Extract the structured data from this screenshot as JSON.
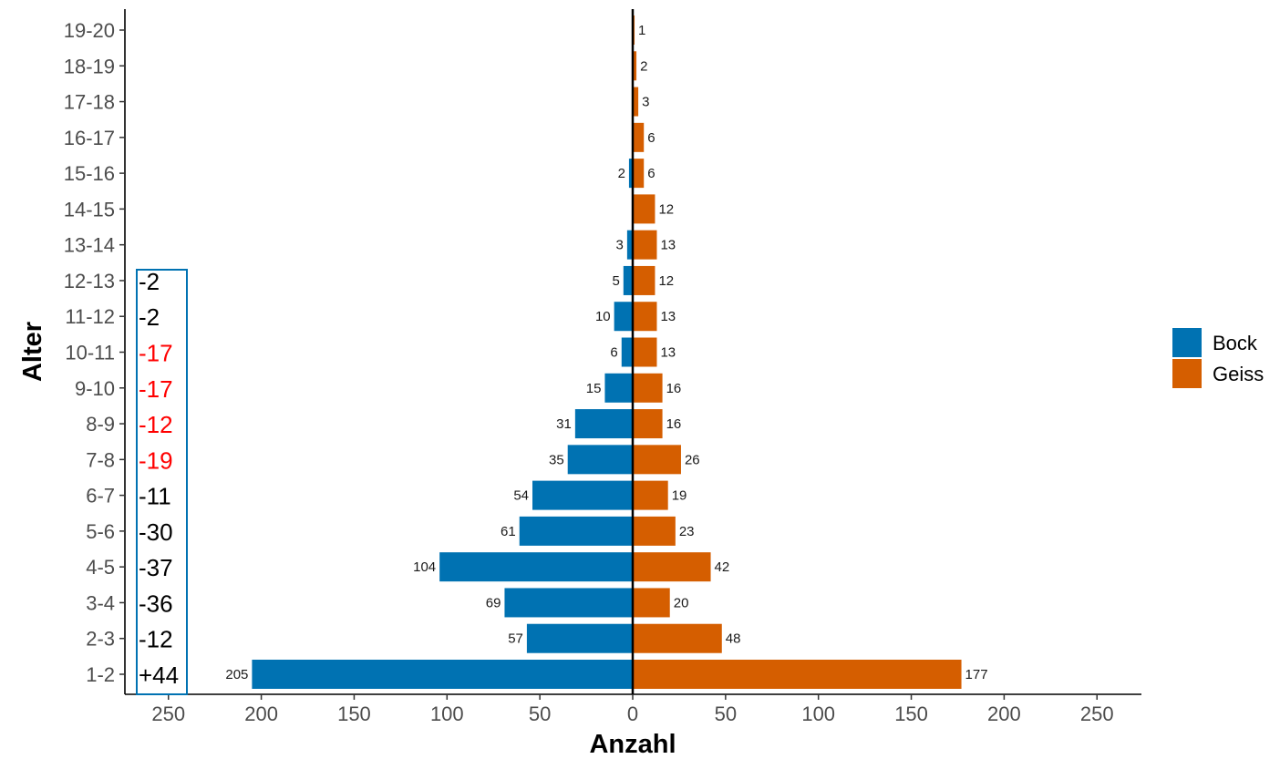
{
  "chart_data": {
    "type": "bar",
    "orientation": "horizontal",
    "layout": "population-pyramid",
    "categories": [
      "1-2",
      "2-3",
      "3-4",
      "4-5",
      "5-6",
      "6-7",
      "7-8",
      "8-9",
      "9-10",
      "10-11",
      "11-12",
      "12-13",
      "13-14",
      "14-15",
      "15-16",
      "16-17",
      "17-18",
      "18-19",
      "19-20"
    ],
    "series": [
      {
        "name": "Bock",
        "color": "#0072B2",
        "direction": "left",
        "values": [
          205,
          57,
          69,
          104,
          61,
          54,
          35,
          31,
          15,
          6,
          10,
          5,
          3,
          0,
          2,
          0,
          0,
          0,
          0
        ],
        "labels": [
          "205",
          "57",
          "69",
          "104",
          "61",
          "54",
          "35",
          "31",
          "15",
          "6",
          "10",
          "5",
          "3",
          "",
          "2",
          "",
          "",
          "",
          ""
        ]
      },
      {
        "name": "Geiss",
        "color": "#D55E00",
        "direction": "right",
        "values": [
          177,
          48,
          20,
          42,
          23,
          19,
          26,
          16,
          16,
          13,
          13,
          12,
          13,
          12,
          6,
          6,
          3,
          2,
          1
        ],
        "labels": [
          "177",
          "48",
          "20",
          "42",
          "23",
          "19",
          "26",
          "16",
          "16",
          "13",
          "13",
          "12",
          "13",
          "12",
          "6",
          "6",
          "3",
          "2",
          "1"
        ]
      }
    ],
    "xlabel": "Anzahl",
    "ylabel": "Alter",
    "xlim": [
      -275,
      275
    ],
    "xticks": [
      -250,
      -200,
      -150,
      -100,
      -50,
      0,
      50,
      100,
      150,
      200,
      250
    ],
    "xtick_labels": [
      "250",
      "200",
      "150",
      "100",
      "50",
      "0",
      "50",
      "100",
      "150",
      "200",
      "250"
    ],
    "grid": false,
    "legend_position": "right",
    "annotation_box": {
      "border_color": "#0072B2",
      "entries": [
        {
          "category": "1-2",
          "text": "+44",
          "color": "#000000"
        },
        {
          "category": "2-3",
          "text": "-12",
          "color": "#000000"
        },
        {
          "category": "3-4",
          "text": "-36",
          "color": "#000000"
        },
        {
          "category": "4-5",
          "text": "-37",
          "color": "#000000"
        },
        {
          "category": "5-6",
          "text": "-30",
          "color": "#000000"
        },
        {
          "category": "6-7",
          "text": "-11",
          "color": "#000000"
        },
        {
          "category": "7-8",
          "text": "-19",
          "color": "#ff0000"
        },
        {
          "category": "8-9",
          "text": "-12",
          "color": "#ff0000"
        },
        {
          "category": "9-10",
          "text": "-17",
          "color": "#ff0000"
        },
        {
          "category": "10-11",
          "text": "-17",
          "color": "#ff0000"
        },
        {
          "category": "11-12",
          "text": "-2",
          "color": "#000000"
        },
        {
          "category": "12-13",
          "text": "-2",
          "color": "#000000"
        }
      ]
    }
  }
}
